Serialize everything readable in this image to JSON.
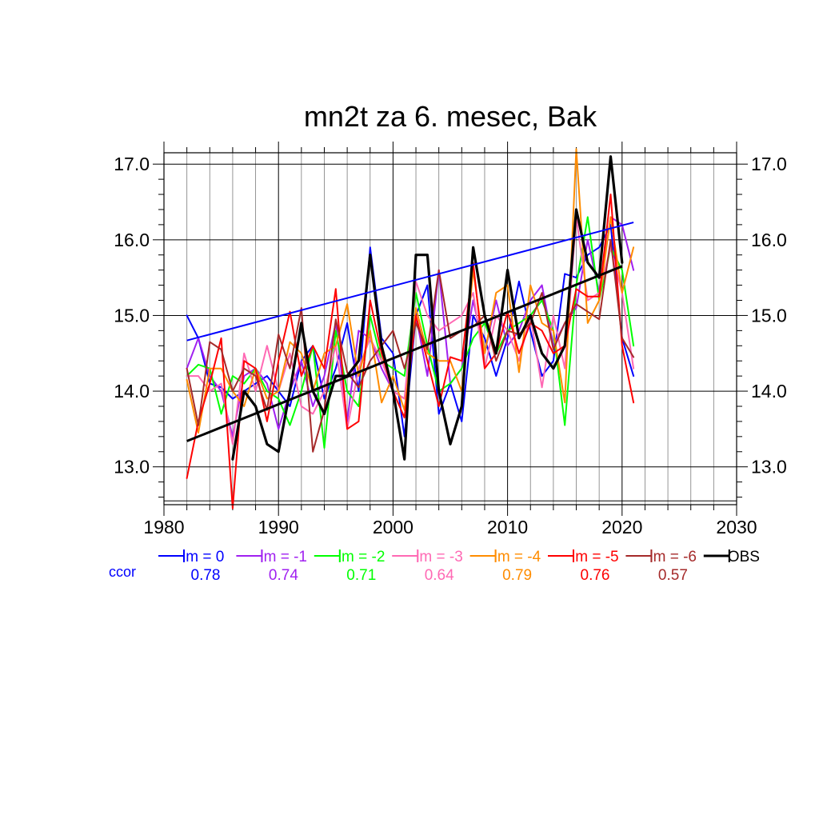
{
  "chart_data": {
    "type": "line",
    "title": "mn2t za 6. mesec, Bak",
    "xlabel": "",
    "ylabel": "",
    "xlim": [
      1980,
      2030
    ],
    "ylim": [
      12.5,
      17.15
    ],
    "x_ticks": [
      1980,
      1990,
      2000,
      2010,
      2020,
      2030
    ],
    "y_ticks": [
      13.0,
      14.0,
      15.0,
      16.0,
      17.0
    ],
    "y_tick_labels": [
      "13.0",
      "14.0",
      "15.0",
      "16.0",
      "17.0"
    ],
    "grid": true,
    "legend_position": "bottom",
    "ccor_label": "ccor",
    "x": [
      1982,
      1983,
      1984,
      1985,
      1986,
      1987,
      1988,
      1989,
      1990,
      1991,
      1992,
      1993,
      1994,
      1995,
      1996,
      1997,
      1998,
      1999,
      2000,
      2001,
      2002,
      2003,
      2004,
      2005,
      2006,
      2007,
      2008,
      2009,
      2010,
      2011,
      2012,
      2013,
      2014,
      2015,
      2016,
      2017,
      2018,
      2019,
      2020,
      2021
    ],
    "series": [
      {
        "name": "lm = 0",
        "color": "#0000ff",
        "ccor": "0.78",
        "values": [
          15.0,
          14.7,
          14.1,
          14.05,
          13.9,
          14.0,
          14.1,
          14.2,
          14.0,
          13.8,
          14.4,
          14.6,
          13.9,
          14.3,
          14.9,
          14.0,
          15.9,
          14.7,
          14.5,
          13.4,
          15.0,
          15.4,
          13.7,
          14.1,
          13.6,
          15.0,
          14.7,
          14.2,
          14.7,
          15.45,
          14.8,
          14.2,
          14.4,
          15.55,
          15.5,
          15.8,
          15.9,
          16.2,
          14.7,
          14.2
        ]
      },
      {
        "name": "lm = -1",
        "color": "#a020f0",
        "ccor": "0.74",
        "values": [
          14.3,
          14.7,
          14.2,
          14.0,
          13.4,
          14.2,
          14.3,
          14.1,
          13.5,
          14.0,
          14.4,
          13.8,
          14.2,
          14.9,
          13.6,
          14.8,
          14.7,
          14.3,
          14.0,
          13.9,
          15.0,
          14.2,
          15.6,
          14.1,
          14.3,
          15.2,
          14.5,
          15.2,
          14.6,
          14.8,
          15.2,
          15.4,
          14.6,
          14.9,
          15.1,
          16.0,
          15.3,
          16.3,
          16.2,
          15.6
        ]
      },
      {
        "name": "lm = -2",
        "color": "#00ff00",
        "ccor": "0.71",
        "values": [
          14.2,
          14.35,
          14.3,
          13.7,
          14.2,
          14.1,
          14.3,
          14.0,
          13.9,
          13.55,
          14.0,
          14.6,
          13.25,
          14.8,
          14.0,
          13.8,
          15.0,
          14.4,
          14.3,
          14.2,
          15.3,
          14.6,
          14.0,
          14.1,
          14.3,
          14.7,
          14.9,
          14.5,
          14.8,
          14.9,
          15.0,
          15.2,
          14.8,
          13.55,
          15.4,
          16.3,
          15.2,
          15.9,
          15.6,
          14.6
        ]
      },
      {
        "name": "lm = -3",
        "color": "#ff69b4",
        "ccor": "0.64",
        "values": [
          14.2,
          14.2,
          14.0,
          14.1,
          13.3,
          14.5,
          14.0,
          14.6,
          14.0,
          14.5,
          13.8,
          13.7,
          14.0,
          14.6,
          13.5,
          14.3,
          14.7,
          14.4,
          14.0,
          13.9,
          15.45,
          15.0,
          14.8,
          14.9,
          15.0,
          15.3,
          14.3,
          15.0,
          14.8,
          14.4,
          15.0,
          14.05,
          15.0,
          14.3,
          16.3,
          15.2,
          15.3,
          15.9,
          15.3,
          14.3
        ]
      },
      {
        "name": "lm = -4",
        "color": "#ff8c00",
        "ccor": "0.79",
        "values": [
          14.15,
          13.45,
          14.3,
          14.3,
          14.0,
          13.8,
          14.3,
          13.9,
          14.0,
          14.65,
          14.5,
          14.0,
          14.5,
          14.6,
          15.15,
          14.2,
          14.8,
          13.85,
          14.2,
          13.75,
          15.1,
          14.5,
          14.4,
          14.4,
          14.0,
          15.6,
          14.5,
          15.3,
          15.4,
          14.25,
          15.4,
          14.9,
          14.8,
          13.85,
          17.2,
          14.9,
          15.2,
          16.3,
          15.3,
          15.9
        ]
      },
      {
        "name": "lm = -5",
        "color": "#ff0000",
        "ccor": "0.76",
        "values": [
          12.85,
          13.6,
          14.1,
          14.7,
          12.45,
          14.4,
          14.3,
          13.6,
          14.4,
          15.05,
          14.2,
          14.6,
          14.3,
          15.35,
          13.5,
          13.6,
          15.2,
          14.5,
          14.0,
          13.65,
          15.0,
          14.4,
          13.8,
          14.45,
          14.4,
          15.7,
          14.3,
          14.5,
          15.05,
          14.5,
          14.9,
          14.8,
          14.5,
          14.6,
          15.35,
          15.25,
          15.25,
          16.6,
          14.6,
          13.85
        ]
      },
      {
        "name": "lm = -6",
        "color": "#a52a2a",
        "ccor": "0.57",
        "values": [
          14.3,
          13.55,
          14.65,
          14.55,
          14.0,
          14.3,
          14.2,
          13.75,
          14.75,
          14.3,
          15.1,
          13.2,
          13.75,
          14.95,
          14.25,
          14.05,
          14.4,
          14.6,
          14.8,
          14.3,
          14.9,
          14.55,
          15.6,
          14.7,
          14.8,
          14.85,
          15.0,
          14.4,
          14.8,
          14.75,
          14.9,
          15.3,
          14.55,
          14.9,
          15.15,
          15.05,
          14.95,
          16.0,
          14.7,
          14.45
        ]
      },
      {
        "name": "OBS",
        "color": "#000000",
        "ccor": "",
        "values": [
          null,
          null,
          null,
          null,
          13.1,
          14.0,
          13.8,
          13.3,
          13.2,
          14.0,
          14.9,
          14.0,
          13.7,
          14.2,
          14.2,
          14.4,
          15.8,
          14.6,
          14.0,
          13.1,
          15.8,
          15.8,
          14.0,
          13.3,
          13.8,
          15.9,
          15.0,
          14.5,
          15.6,
          14.7,
          15.0,
          14.5,
          14.3,
          14.6,
          16.4,
          15.7,
          15.5,
          17.1,
          15.7,
          null
        ]
      }
    ],
    "trend_lines": [
      {
        "name": "lm = 0 trend",
        "color": "#0000ff",
        "x": [
          1982,
          2021
        ],
        "values": [
          14.67,
          16.23
        ]
      },
      {
        "name": "OBS trend",
        "color": "#000000",
        "x": [
          1982,
          2020
        ],
        "values": [
          13.34,
          15.65
        ]
      }
    ]
  }
}
